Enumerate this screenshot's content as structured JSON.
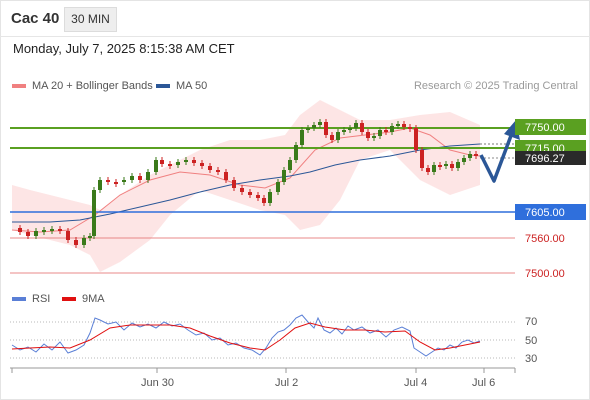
{
  "header": {
    "instrument": "Cac 40",
    "timeframe": "30 MIN"
  },
  "datetime": "Monday, July 7, 2025 8:15:38 AM CET",
  "legend": {
    "ma20": {
      "label": "MA 20 + Bollinger Bands",
      "color": "#f08080"
    },
    "ma50": {
      "label": "MA 50",
      "color": "#2b5797"
    }
  },
  "credit": "Research © 2025 Trading Central",
  "levels": [
    {
      "label": "7750.00",
      "kind": "resistance",
      "color": "#5aa021"
    },
    {
      "label": "7715.00",
      "kind": "resistance",
      "color": "#5aa021"
    },
    {
      "label": "7696.27",
      "kind": "last-price",
      "color": "#333333"
    },
    {
      "label": "7605.00",
      "kind": "pivot",
      "color": "#2f6fdc"
    },
    {
      "label": "7560.00",
      "kind": "support",
      "color": "#d03030"
    },
    {
      "label": "7500.00",
      "kind": "support",
      "color": "#d03030"
    }
  ],
  "rsi_legend": {
    "rsi": {
      "label": "RSI",
      "color": "#5a7fd6"
    },
    "ma9": {
      "label": "9MA",
      "color": "#e01010"
    }
  },
  "rsi_ticks": [
    "70",
    "50",
    "30"
  ],
  "x_ticks": [
    "Jun 30",
    "Jul 2",
    "Jul 4",
    "Jul 6"
  ],
  "colors": {
    "up": "#3a7a1a",
    "down": "#cc2222",
    "arrow": "#2b5797"
  }
}
